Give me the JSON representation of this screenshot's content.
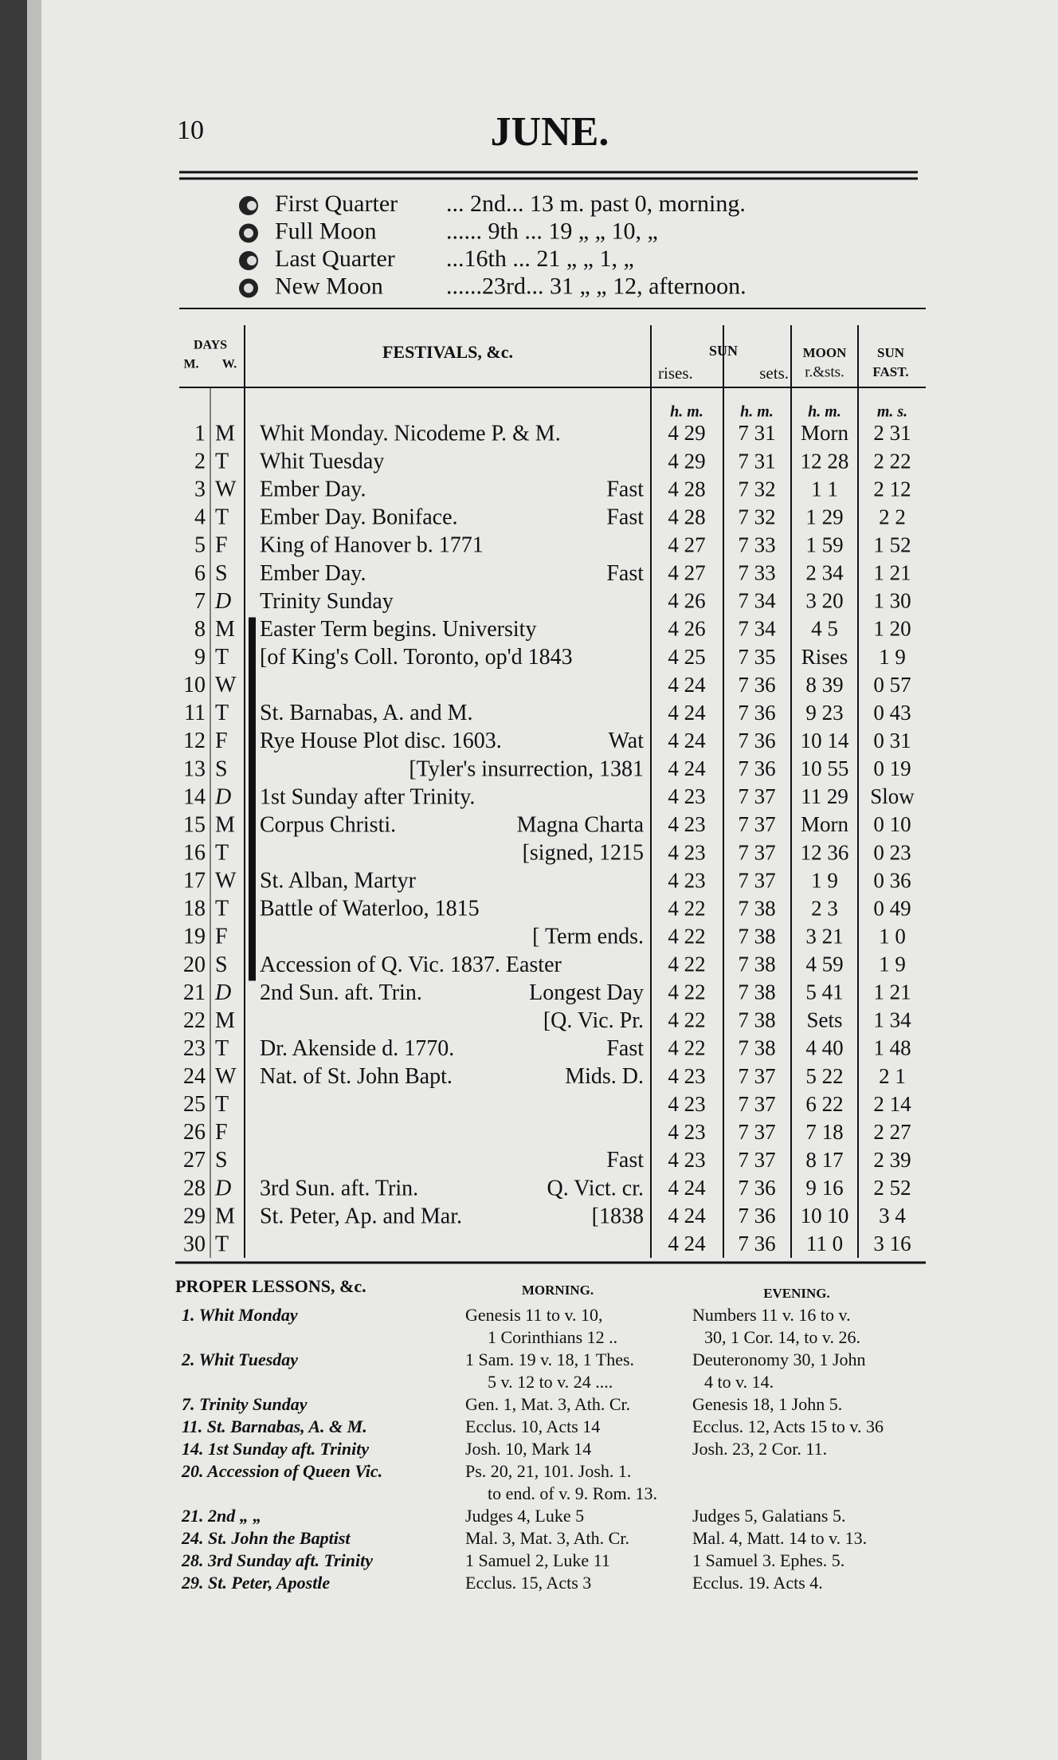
{
  "header": {
    "page_number": "10",
    "title": "JUNE."
  },
  "moon_phases": [
    {
      "name": "First Quarter",
      "detail": "... 2nd... 13 m. past  0, morning."
    },
    {
      "name": "Full Moon",
      "detail": "...... 9th ... 19 „ „ 10, „"
    },
    {
      "name": "Last Quarter",
      "detail": "...16th ... 21 „ „ 1, „"
    },
    {
      "name": "New Moon",
      "detail": "......23rd... 31 „ „ 12, afternoon."
    }
  ],
  "table": {
    "headers": {
      "days": "DAYS",
      "m": "M.",
      "w": "W.",
      "festivals": "FESTIVALS, &c.",
      "sun": "SUN",
      "rises": "rises.",
      "sets": "sets.",
      "moon": "MOON",
      "moon_sub": "r.&sts.",
      "sun_fast": "SUN",
      "fast": "FAST."
    },
    "units": [
      "h. m.",
      "h. m.",
      "h. m.",
      "m. s."
    ],
    "rows": [
      {
        "day": "1",
        "w": "M",
        "fest": "Whit Monday. Nicodeme P. & M.",
        "rises": "4 29",
        "sets": "7 31",
        "moon": "Morn",
        "fast": "2 31"
      },
      {
        "day": "2",
        "w": "T",
        "fest": "Whit Tuesday",
        "rises": "4 29",
        "sets": "7 31",
        "moon": "12 28",
        "fast": "2 22"
      },
      {
        "day": "3",
        "w": "W",
        "fest": "Ember Day.",
        "fest_right": "Fast",
        "rises": "4 28",
        "sets": "7 32",
        "moon": "1 1",
        "fast": "2 12"
      },
      {
        "day": "4",
        "w": "T",
        "fest": "Ember Day. Boniface.",
        "fest_right": "Fast",
        "rises": "4 28",
        "sets": "7 32",
        "moon": "1 29",
        "fast": "2 2"
      },
      {
        "day": "5",
        "w": "F",
        "fest": "King of Hanover b. 1771",
        "rises": "4 27",
        "sets": "7 33",
        "moon": "1 59",
        "fast": "1 52"
      },
      {
        "day": "6",
        "w": "S",
        "fest": "Ember Day.",
        "fest_right": "Fast",
        "rises": "4 27",
        "sets": "7 33",
        "moon": "2 34",
        "fast": "1 21"
      },
      {
        "day": "7",
        "w": "D",
        "fest": "Trinity Sunday",
        "rises": "4 26",
        "sets": "7 34",
        "moon": "3 20",
        "fast": "1 30"
      },
      {
        "day": "8",
        "w": "M",
        "fest": "Easter Term begins. University",
        "rises": "4 26",
        "sets": "7 34",
        "moon": "4 5",
        "fast": "1 20"
      },
      {
        "day": "9",
        "w": "T",
        "fest": "[of King's Coll. Toronto, op'd 1843",
        "rises": "4 25",
        "sets": "7 35",
        "moon": "Rises",
        "fast": "1 9"
      },
      {
        "day": "10",
        "w": "W",
        "rises": "4 24",
        "sets": "7 36",
        "moon": "8 39",
        "fast": "0 57"
      },
      {
        "day": "11",
        "w": "T",
        "fest": "St. Barnabas, A. and M.",
        "rises": "4 24",
        "sets": "7 36",
        "moon": "9 23",
        "fast": "0 43"
      },
      {
        "day": "12",
        "w": "F",
        "fest": "Rye House Plot disc. 1603.",
        "fest_right": "Wat",
        "rises": "4 24",
        "sets": "7 36",
        "moon": "10 14",
        "fast": "0 31"
      },
      {
        "day": "13",
        "w": "S",
        "fest_right": "[Tyler's insurrection, 1381",
        "rises": "4 24",
        "sets": "7 36",
        "moon": "10 55",
        "fast": "0 19"
      },
      {
        "day": "14",
        "w": "D",
        "fest": "1st Sunday after Trinity.",
        "rises": "4 23",
        "sets": "7 37",
        "moon": "11 29",
        "fast": "Slow"
      },
      {
        "day": "15",
        "w": "M",
        "fest": "Corpus Christi.",
        "fest_right": "Magna Charta",
        "rises": "4 23",
        "sets": "7 37",
        "moon": "Morn",
        "fast": "0 10"
      },
      {
        "day": "16",
        "w": "T",
        "fest_right": "[signed, 1215",
        "rises": "4 23",
        "sets": "7 37",
        "moon": "12 36",
        "fast": "0 23"
      },
      {
        "day": "17",
        "w": "W",
        "fest": "St. Alban, Martyr",
        "rises": "4 23",
        "sets": "7 37",
        "moon": "1 9",
        "fast": "0 36"
      },
      {
        "day": "18",
        "w": "T",
        "fest": "Battle of Waterloo, 1815",
        "rises": "4 22",
        "sets": "7 38",
        "moon": "2 3",
        "fast": "0 49"
      },
      {
        "day": "19",
        "w": "F",
        "fest_right": "[ Term ends.",
        "rises": "4 22",
        "sets": "7 38",
        "moon": "3 21",
        "fast": "1 0"
      },
      {
        "day": "20",
        "w": "S",
        "fest": "Accession of Q. Vic. 1837. Easter",
        "rises": "4 22",
        "sets": "7 38",
        "moon": "4 59",
        "fast": "1 9"
      },
      {
        "day": "21",
        "w": "D",
        "fest": "2nd Sun. aft. Trin.",
        "fest_right": "Longest Day",
        "rises": "4 22",
        "sets": "7 38",
        "moon": "5 41",
        "fast": "1 21"
      },
      {
        "day": "22",
        "w": "M",
        "fest_right": "[Q. Vic. Pr.",
        "rises": "4 22",
        "sets": "7 38",
        "moon": "Sets",
        "fast": "1 34"
      },
      {
        "day": "23",
        "w": "T",
        "fest": "Dr. Akenside d. 1770.",
        "fest_right": "Fast",
        "rises": "4 22",
        "sets": "7 38",
        "moon": "4 40",
        "fast": "1 48"
      },
      {
        "day": "24",
        "w": "W",
        "fest": "Nat. of St. John Bapt.",
        "fest_right": "Mids. D.",
        "rises": "4 23",
        "sets": "7 37",
        "moon": "5 22",
        "fast": "2 1"
      },
      {
        "day": "25",
        "w": "T",
        "rises": "4 23",
        "sets": "7 37",
        "moon": "6 22",
        "fast": "2 14"
      },
      {
        "day": "26",
        "w": "F",
        "rises": "4 23",
        "sets": "7 37",
        "moon": "7 18",
        "fast": "2 27"
      },
      {
        "day": "27",
        "w": "S",
        "fest_right": "Fast",
        "rises": "4 23",
        "sets": "7 37",
        "moon": "8 17",
        "fast": "2 39"
      },
      {
        "day": "28",
        "w": "D",
        "fest": "3rd Sun. aft. Trin.",
        "fest_right": "Q. Vict. cr.",
        "rises": "4 24",
        "sets": "7 36",
        "moon": "9 16",
        "fast": "2 52"
      },
      {
        "day": "29",
        "w": "M",
        "fest": "St. Peter, Ap. and Mar.",
        "fest_right": "[1838",
        "rises": "4 24",
        "sets": "7 36",
        "moon": "10 10",
        "fast": "3 4"
      },
      {
        "day": "30",
        "w": "T",
        "rises": "4 24",
        "sets": "7 36",
        "moon": "11 0",
        "fast": "3 16"
      }
    ]
  },
  "lessons": {
    "title": "PROPER LESSONS, &c.",
    "morning": "MORNING.",
    "evening": "EVENING.",
    "rows": [
      {
        "day": "1. Whit Monday",
        "morning": [
          "Genesis 11 to v. 10,",
          "1 Corinthians 12 .."
        ],
        "evening": [
          "Numbers 11 v. 16 to v.",
          "30, 1 Cor. 14, to v. 26."
        ]
      },
      {
        "day": "2. Whit Tuesday",
        "morning": [
          "1 Sam. 19 v. 18, 1 Thes.",
          "5 v. 12 to v. 24 ...."
        ],
        "evening": [
          "Deuteronomy 30, 1 John",
          "4 to v. 14."
        ]
      },
      {
        "day": "7. Trinity Sunday",
        "morning": [
          "Gen. 1, Mat. 3, Ath. Cr."
        ],
        "evening": [
          "Genesis 18, 1 John 5."
        ]
      },
      {
        "day": "11. St. Barnabas, A. & M.",
        "morning": [
          "Ecclus. 10, Acts 14"
        ],
        "evening": [
          "Ecclus. 12, Acts 15 to v. 36"
        ]
      },
      {
        "day": "14. 1st Sunday aft. Trinity",
        "morning": [
          "Josh. 10, Mark 14"
        ],
        "evening": [
          "Josh. 23, 2 Cor. 11."
        ]
      },
      {
        "day": "20. Accession of Queen Vic.",
        "morning": [
          "Ps. 20, 21, 101. Josh. 1.",
          "to end. of v. 9. Rom. 13."
        ]
      },
      {
        "day": "21. 2nd „ „",
        "morning": [
          "Judges 4, Luke 5"
        ],
        "evening": [
          "Judges 5, Galatians 5."
        ]
      },
      {
        "day": "24. St. John the Baptist",
        "morning": [
          "Mal. 3, Mat. 3, Ath. Cr."
        ],
        "evening": [
          "Mal. 4, Matt. 14 to v. 13."
        ]
      },
      {
        "day": "28. 3rd Sunday aft. Trinity",
        "morning": [
          "1 Samuel 2, Luke 11"
        ],
        "evening": [
          "1 Samuel 3. Ephes. 5."
        ]
      },
      {
        "day": "29. St. Peter, Apostle",
        "morning": [
          "Ecclus. 15, Acts 3"
        ],
        "evening": [
          "Ecclus. 19. Acts 4."
        ]
      }
    ]
  }
}
